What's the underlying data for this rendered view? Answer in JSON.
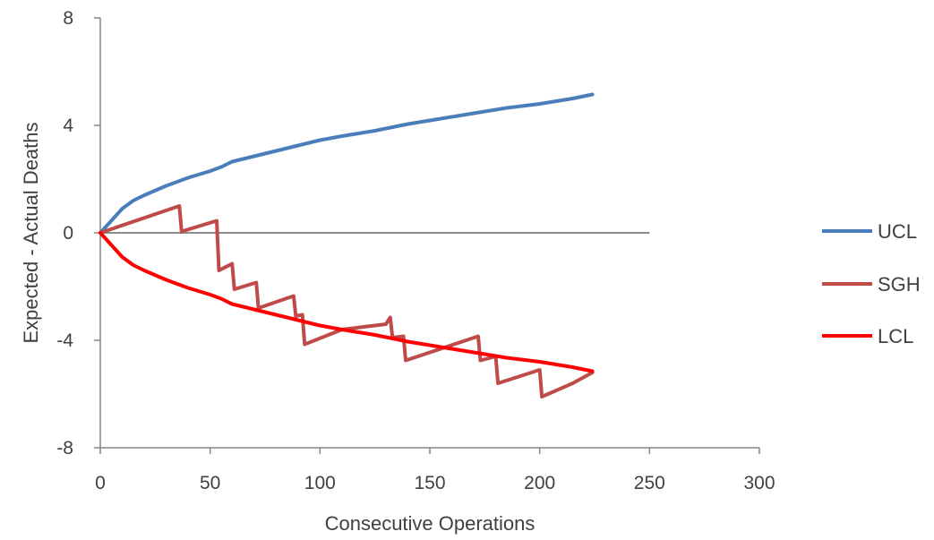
{
  "chart_data": {
    "type": "line",
    "title": "",
    "xlabel": "Consecutive Operations",
    "ylabel": "Expected - Actual Deaths",
    "xlim": [
      0,
      300
    ],
    "ylim": [
      -8,
      8
    ],
    "x_ticks": [
      "0",
      "50",
      "100",
      "150",
      "200",
      "250",
      "300"
    ],
    "y_ticks": [
      "8",
      "4",
      "0",
      "-4",
      "-8"
    ],
    "grid": false,
    "legend_position": "right",
    "reference_line": {
      "y": 0,
      "x_range": [
        0,
        250
      ],
      "color": "#8c8c8c"
    },
    "series": [
      {
        "name": "UCL",
        "color": "#4a7ebb",
        "points": [
          [
            0,
            0
          ],
          [
            5,
            0.45
          ],
          [
            10,
            0.9
          ],
          [
            15,
            1.2
          ],
          [
            20,
            1.4
          ],
          [
            30,
            1.75
          ],
          [
            40,
            2.05
          ],
          [
            50,
            2.3
          ],
          [
            55,
            2.45
          ],
          [
            60,
            2.65
          ],
          [
            75,
            2.95
          ],
          [
            90,
            3.25
          ],
          [
            100,
            3.45
          ],
          [
            110,
            3.6
          ],
          [
            125,
            3.8
          ],
          [
            140,
            4.05
          ],
          [
            155,
            4.25
          ],
          [
            170,
            4.45
          ],
          [
            185,
            4.65
          ],
          [
            200,
            4.8
          ],
          [
            215,
            5.0
          ],
          [
            224,
            5.15
          ]
        ]
      },
      {
        "name": "SGH",
        "color": "#be4b48",
        "points": [
          [
            0,
            0
          ],
          [
            36,
            1.0
          ],
          [
            37,
            0.05
          ],
          [
            53,
            0.45
          ],
          [
            54,
            -1.4
          ],
          [
            60,
            -1.15
          ],
          [
            61,
            -2.1
          ],
          [
            71,
            -1.85
          ],
          [
            72,
            -2.8
          ],
          [
            88,
            -2.35
          ],
          [
            89,
            -3.1
          ],
          [
            92,
            -3.05
          ],
          [
            93,
            -4.15
          ],
          [
            110,
            -3.6
          ],
          [
            130,
            -3.4
          ],
          [
            132,
            -3.15
          ],
          [
            133,
            -3.9
          ],
          [
            138,
            -3.85
          ],
          [
            139,
            -4.75
          ],
          [
            172,
            -3.85
          ],
          [
            173,
            -4.75
          ],
          [
            180,
            -4.6
          ],
          [
            181,
            -5.6
          ],
          [
            200,
            -5.1
          ],
          [
            201,
            -6.1
          ],
          [
            215,
            -5.6
          ],
          [
            224,
            -5.2
          ]
        ]
      },
      {
        "name": "LCL",
        "color": "#ff0000",
        "points": [
          [
            0,
            0
          ],
          [
            5,
            -0.45
          ],
          [
            10,
            -0.9
          ],
          [
            15,
            -1.2
          ],
          [
            20,
            -1.4
          ],
          [
            30,
            -1.75
          ],
          [
            40,
            -2.05
          ],
          [
            50,
            -2.3
          ],
          [
            55,
            -2.45
          ],
          [
            60,
            -2.65
          ],
          [
            75,
            -2.95
          ],
          [
            90,
            -3.25
          ],
          [
            100,
            -3.45
          ],
          [
            110,
            -3.6
          ],
          [
            125,
            -3.8
          ],
          [
            140,
            -4.05
          ],
          [
            155,
            -4.25
          ],
          [
            170,
            -4.45
          ],
          [
            185,
            -4.65
          ],
          [
            200,
            -4.8
          ],
          [
            215,
            -5.0
          ],
          [
            224,
            -5.15
          ]
        ]
      }
    ]
  }
}
